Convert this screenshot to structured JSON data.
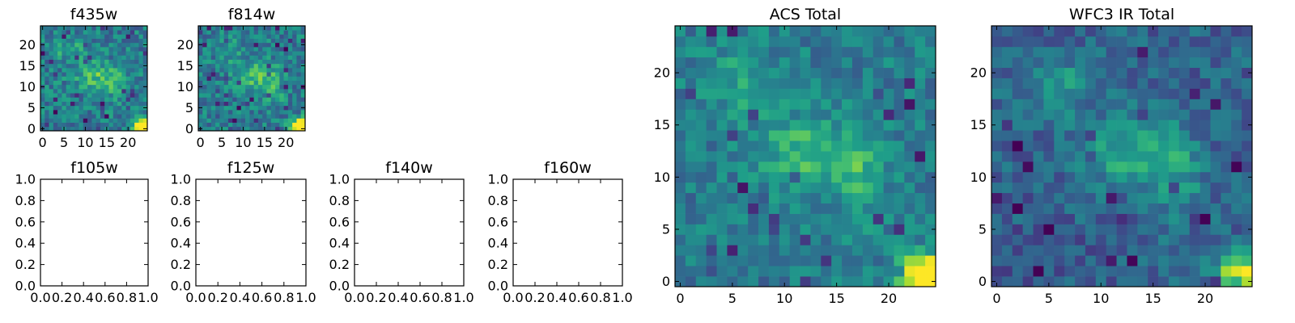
{
  "chart_data": [
    {
      "type": "heatmap",
      "title": "f435w",
      "seed": 11,
      "style": "noisy",
      "xlim": [
        -0.5,
        24.5
      ],
      "ylim": [
        -0.5,
        24.5
      ],
      "xticks": [
        0,
        5,
        10,
        15,
        20
      ],
      "yticks": [
        0,
        5,
        10,
        15,
        20
      ],
      "colormap": "viridis"
    },
    {
      "type": "heatmap",
      "title": "f814w",
      "seed": 29,
      "style": "noisy",
      "xlim": [
        -0.5,
        24.5
      ],
      "ylim": [
        -0.5,
        24.5
      ],
      "xticks": [
        0,
        5,
        10,
        15,
        20
      ],
      "yticks": [
        0,
        5,
        10,
        15,
        20
      ],
      "colormap": "viridis"
    },
    {
      "type": "empty",
      "title": "f105w",
      "xlim": [
        0,
        1
      ],
      "ylim": [
        0,
        1
      ],
      "xticks": [
        "0.0",
        "0.2",
        "0.4",
        "0.6",
        "0.8",
        "1.0"
      ],
      "yticks": [
        "0.0",
        "0.2",
        "0.4",
        "0.6",
        "0.8",
        "1.0"
      ]
    },
    {
      "type": "empty",
      "title": "f125w",
      "xlim": [
        0,
        1
      ],
      "ylim": [
        0,
        1
      ],
      "xticks": [
        "0.0",
        "0.2",
        "0.4",
        "0.6",
        "0.8",
        "1.0"
      ],
      "yticks": [
        "0.0",
        "0.2",
        "0.4",
        "0.6",
        "0.8",
        "1.0"
      ]
    },
    {
      "type": "empty",
      "title": "f140w",
      "xlim": [
        0,
        1
      ],
      "ylim": [
        0,
        1
      ],
      "xticks": [
        "0.0",
        "0.2",
        "0.4",
        "0.6",
        "0.8",
        "1.0"
      ],
      "yticks": [
        "0.0",
        "0.2",
        "0.4",
        "0.6",
        "0.8",
        "1.0"
      ]
    },
    {
      "type": "empty",
      "title": "f160w",
      "xlim": [
        0,
        1
      ],
      "ylim": [
        0,
        1
      ],
      "xticks": [
        "0.0",
        "0.2",
        "0.4",
        "0.6",
        "0.8",
        "1.0"
      ],
      "yticks": [
        "0.0",
        "0.2",
        "0.4",
        "0.6",
        "0.8",
        "1.0"
      ]
    },
    {
      "type": "heatmap",
      "title": "ACS Total",
      "seed": 47,
      "style": "acs",
      "xlim": [
        -0.5,
        24.5
      ],
      "ylim": [
        -0.5,
        24.5
      ],
      "xticks": [
        0,
        5,
        10,
        15,
        20
      ],
      "yticks": [
        0,
        5,
        10,
        15,
        20
      ],
      "colormap": "viridis"
    },
    {
      "type": "heatmap",
      "title": "WFC3 IR Total",
      "seed": 83,
      "style": "ir",
      "xlim": [
        -0.5,
        24.5
      ],
      "ylim": [
        -0.5,
        24.5
      ],
      "xticks": [
        0,
        5,
        10,
        15,
        20
      ],
      "yticks": [
        0,
        5,
        10,
        15,
        20
      ],
      "colormap": "viridis"
    }
  ]
}
